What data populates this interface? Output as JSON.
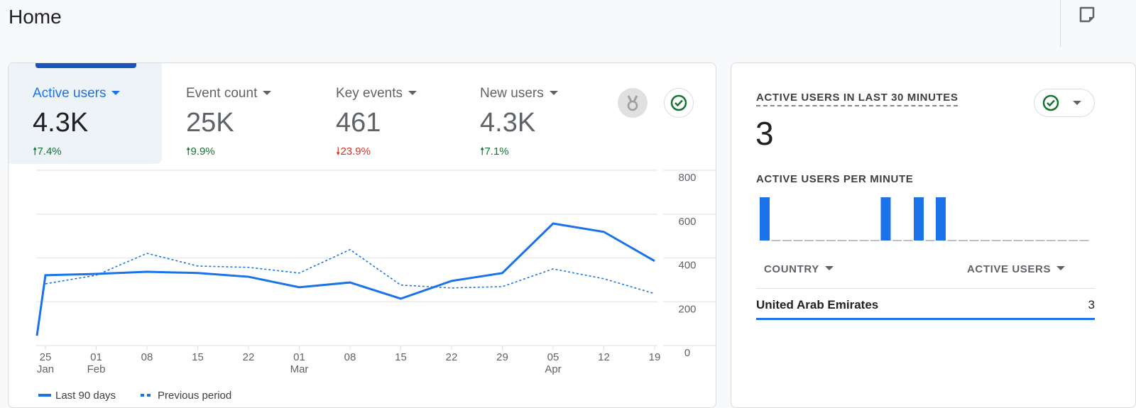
{
  "header": {
    "title": "Home",
    "icon": "note-icon"
  },
  "metrics": [
    {
      "label": "Active users",
      "value": "4.3K",
      "change": "7.4%",
      "direction": "up",
      "selected": true
    },
    {
      "label": "Event count",
      "value": "25K",
      "change": "9.9%",
      "direction": "up"
    },
    {
      "label": "Key events",
      "value": "461",
      "change": "23.9%",
      "direction": "down"
    },
    {
      "label": "New users",
      "value": "4.3K",
      "change": "7.1%",
      "direction": "up"
    }
  ],
  "colors": {
    "accent": "#1a73e8",
    "up": "#137333",
    "down": "#d93025"
  },
  "chart_data": {
    "type": "line",
    "x_ticks": [
      {
        "day": "25",
        "month": "Jan"
      },
      {
        "day": "01",
        "month": "Feb"
      },
      {
        "day": "08",
        "month": ""
      },
      {
        "day": "15",
        "month": ""
      },
      {
        "day": "22",
        "month": ""
      },
      {
        "day": "01",
        "month": "Mar"
      },
      {
        "day": "08",
        "month": ""
      },
      {
        "day": "15",
        "month": ""
      },
      {
        "day": "22",
        "month": ""
      },
      {
        "day": "29",
        "month": ""
      },
      {
        "day": "05",
        "month": "Apr"
      },
      {
        "day": "12",
        "month": ""
      },
      {
        "day": "19",
        "month": ""
      }
    ],
    "y_ticks": [
      "0",
      "200",
      "400",
      "600",
      "800"
    ],
    "ylim": [
      0,
      800
    ],
    "grid": true,
    "legend_position": "bottom-left",
    "series": [
      {
        "name": "Last 90 days",
        "style": "solid",
        "start_value": 45,
        "values": [
          321,
          327,
          337,
          331,
          314,
          266,
          288,
          214,
          295,
          331,
          557,
          519,
          386
        ]
      },
      {
        "name": "Previous period",
        "style": "dashed",
        "values": [
          282,
          321,
          421,
          363,
          357,
          331,
          438,
          276,
          263,
          269,
          350,
          305,
          237
        ]
      }
    ]
  },
  "realtime": {
    "title": "ACTIVE USERS IN LAST 30 MINUTES",
    "value": "3",
    "per_minute_label": "ACTIVE USERS PER MINUTE",
    "per_minute": [
      1,
      0,
      0,
      0,
      0,
      0,
      0,
      0,
      0,
      0,
      0,
      1,
      0,
      0,
      1,
      0,
      1,
      0,
      0,
      0,
      0,
      0,
      0,
      0,
      0,
      0,
      0,
      0,
      0,
      0
    ],
    "col_country": "COUNTRY",
    "col_users": "ACTIVE USERS",
    "rows": [
      {
        "country": "United Arab Emirates",
        "users": "3"
      }
    ]
  }
}
